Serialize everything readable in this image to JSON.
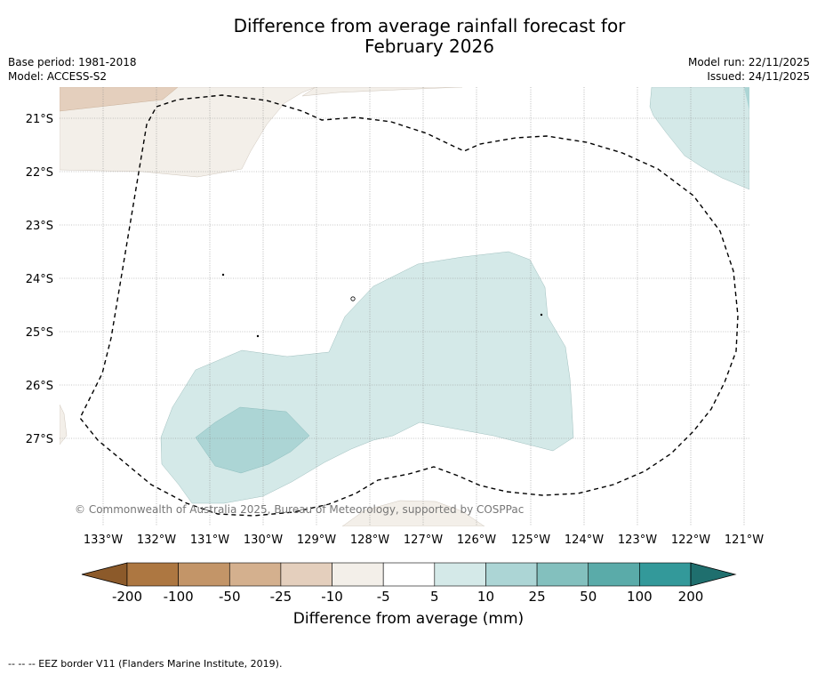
{
  "title_line1": "Difference from average rainfall forecast for",
  "title_line2": "February 2026",
  "base_period": "Base period: 1981-2018",
  "model": "Model: ACCESS-S2",
  "model_run": "Model run: 22/11/2025",
  "issued": "Issued: 24/11/2025",
  "lat_labels": [
    "21°S",
    "22°S",
    "23°S",
    "24°S",
    "25°S",
    "26°S",
    "27°S"
  ],
  "lon_labels": [
    "133°W",
    "132°W",
    "131°W",
    "130°W",
    "129°W",
    "128°W",
    "127°W",
    "126°W",
    "125°W",
    "124°W",
    "123°W",
    "122°W",
    "121°W"
  ],
  "copyright": "© Commonwealth of Australia 2025, Bureau of Meteorology, supported by COSPPac",
  "colorbar": {
    "ticks": [
      "-200",
      "-100",
      "-50",
      "-25",
      "-10",
      "-5",
      "5",
      "10",
      "25",
      "50",
      "100",
      "200"
    ],
    "colors": [
      "#8c5a2a",
      "#ad7741",
      "#c39568",
      "#d4b08e",
      "#e4cfbd",
      "#f3efe9",
      "#ffffff",
      "#d4e9e8",
      "#acd5d5",
      "#83c0be",
      "#5aaba9",
      "#33999a",
      "#1f6f6e"
    ],
    "label": "Difference from average (mm)"
  },
  "footnote": "--  --  -- EEZ border V11 (Flanders Marine Institute, 2019)."
}
